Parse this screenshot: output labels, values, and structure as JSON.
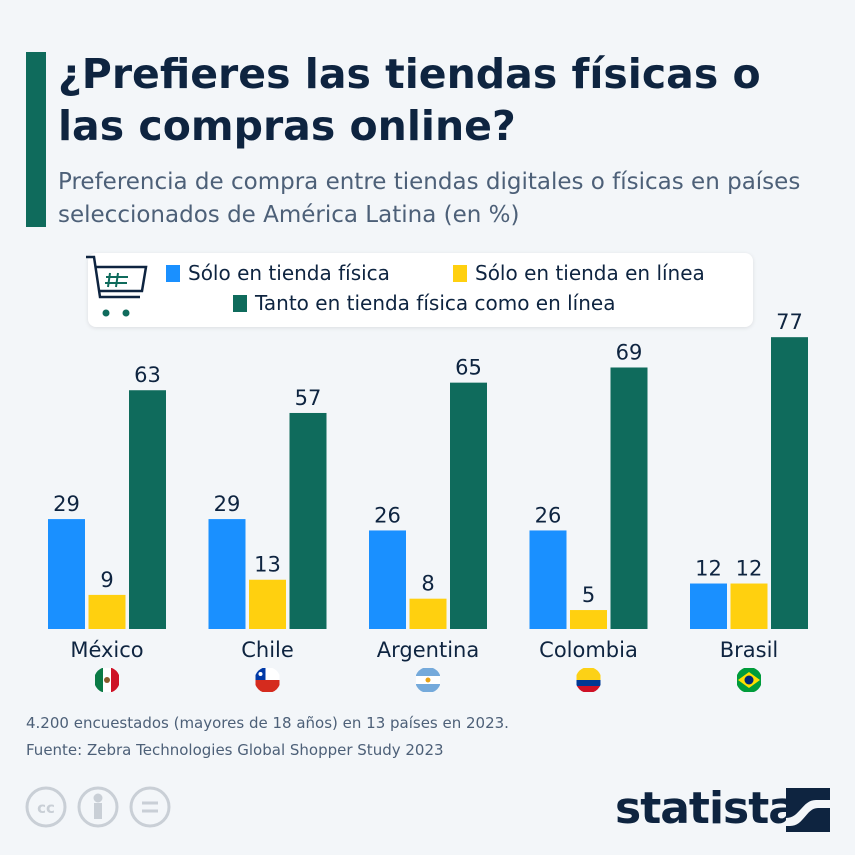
{
  "title": "¿Prefieres las tiendas físicas o las compras online?",
  "subtitle": "Preferencia de compra entre tiendas digitales o físicas en países seleccionados de América Latina (en %)",
  "legend_icon": "shopping-cart-icon",
  "chart_data": {
    "type": "bar",
    "categories": [
      "México",
      "Chile",
      "Argentina",
      "Colombia",
      "Brasil"
    ],
    "series": [
      {
        "name": "Sólo en tienda física",
        "color": "#1a90ff",
        "values": [
          29,
          29,
          26,
          26,
          12
        ]
      },
      {
        "name": "Sólo en tienda en línea",
        "color": "#ffd00f",
        "values": [
          9,
          13,
          8,
          5,
          12
        ]
      },
      {
        "name": "Tanto en tienda física como en línea",
        "color": "#0f6b5c",
        "values": [
          63,
          57,
          65,
          69,
          77
        ]
      }
    ],
    "flags": [
      "mexico-flag-icon",
      "chile-flag-icon",
      "argentina-flag-icon",
      "colombia-flag-icon",
      "brazil-flag-icon"
    ],
    "grid": false,
    "data_labels": true
  },
  "notes": {
    "sample": "4.200 encuestados (mayores de 18 años) en 13 países en 2023.",
    "source": "Fuente: Zebra Technologies Global Shopper Study 2023"
  },
  "footer": {
    "license_icons": [
      "cc-icon",
      "attribution-icon",
      "no-derivatives-icon"
    ],
    "logo": "statista"
  }
}
